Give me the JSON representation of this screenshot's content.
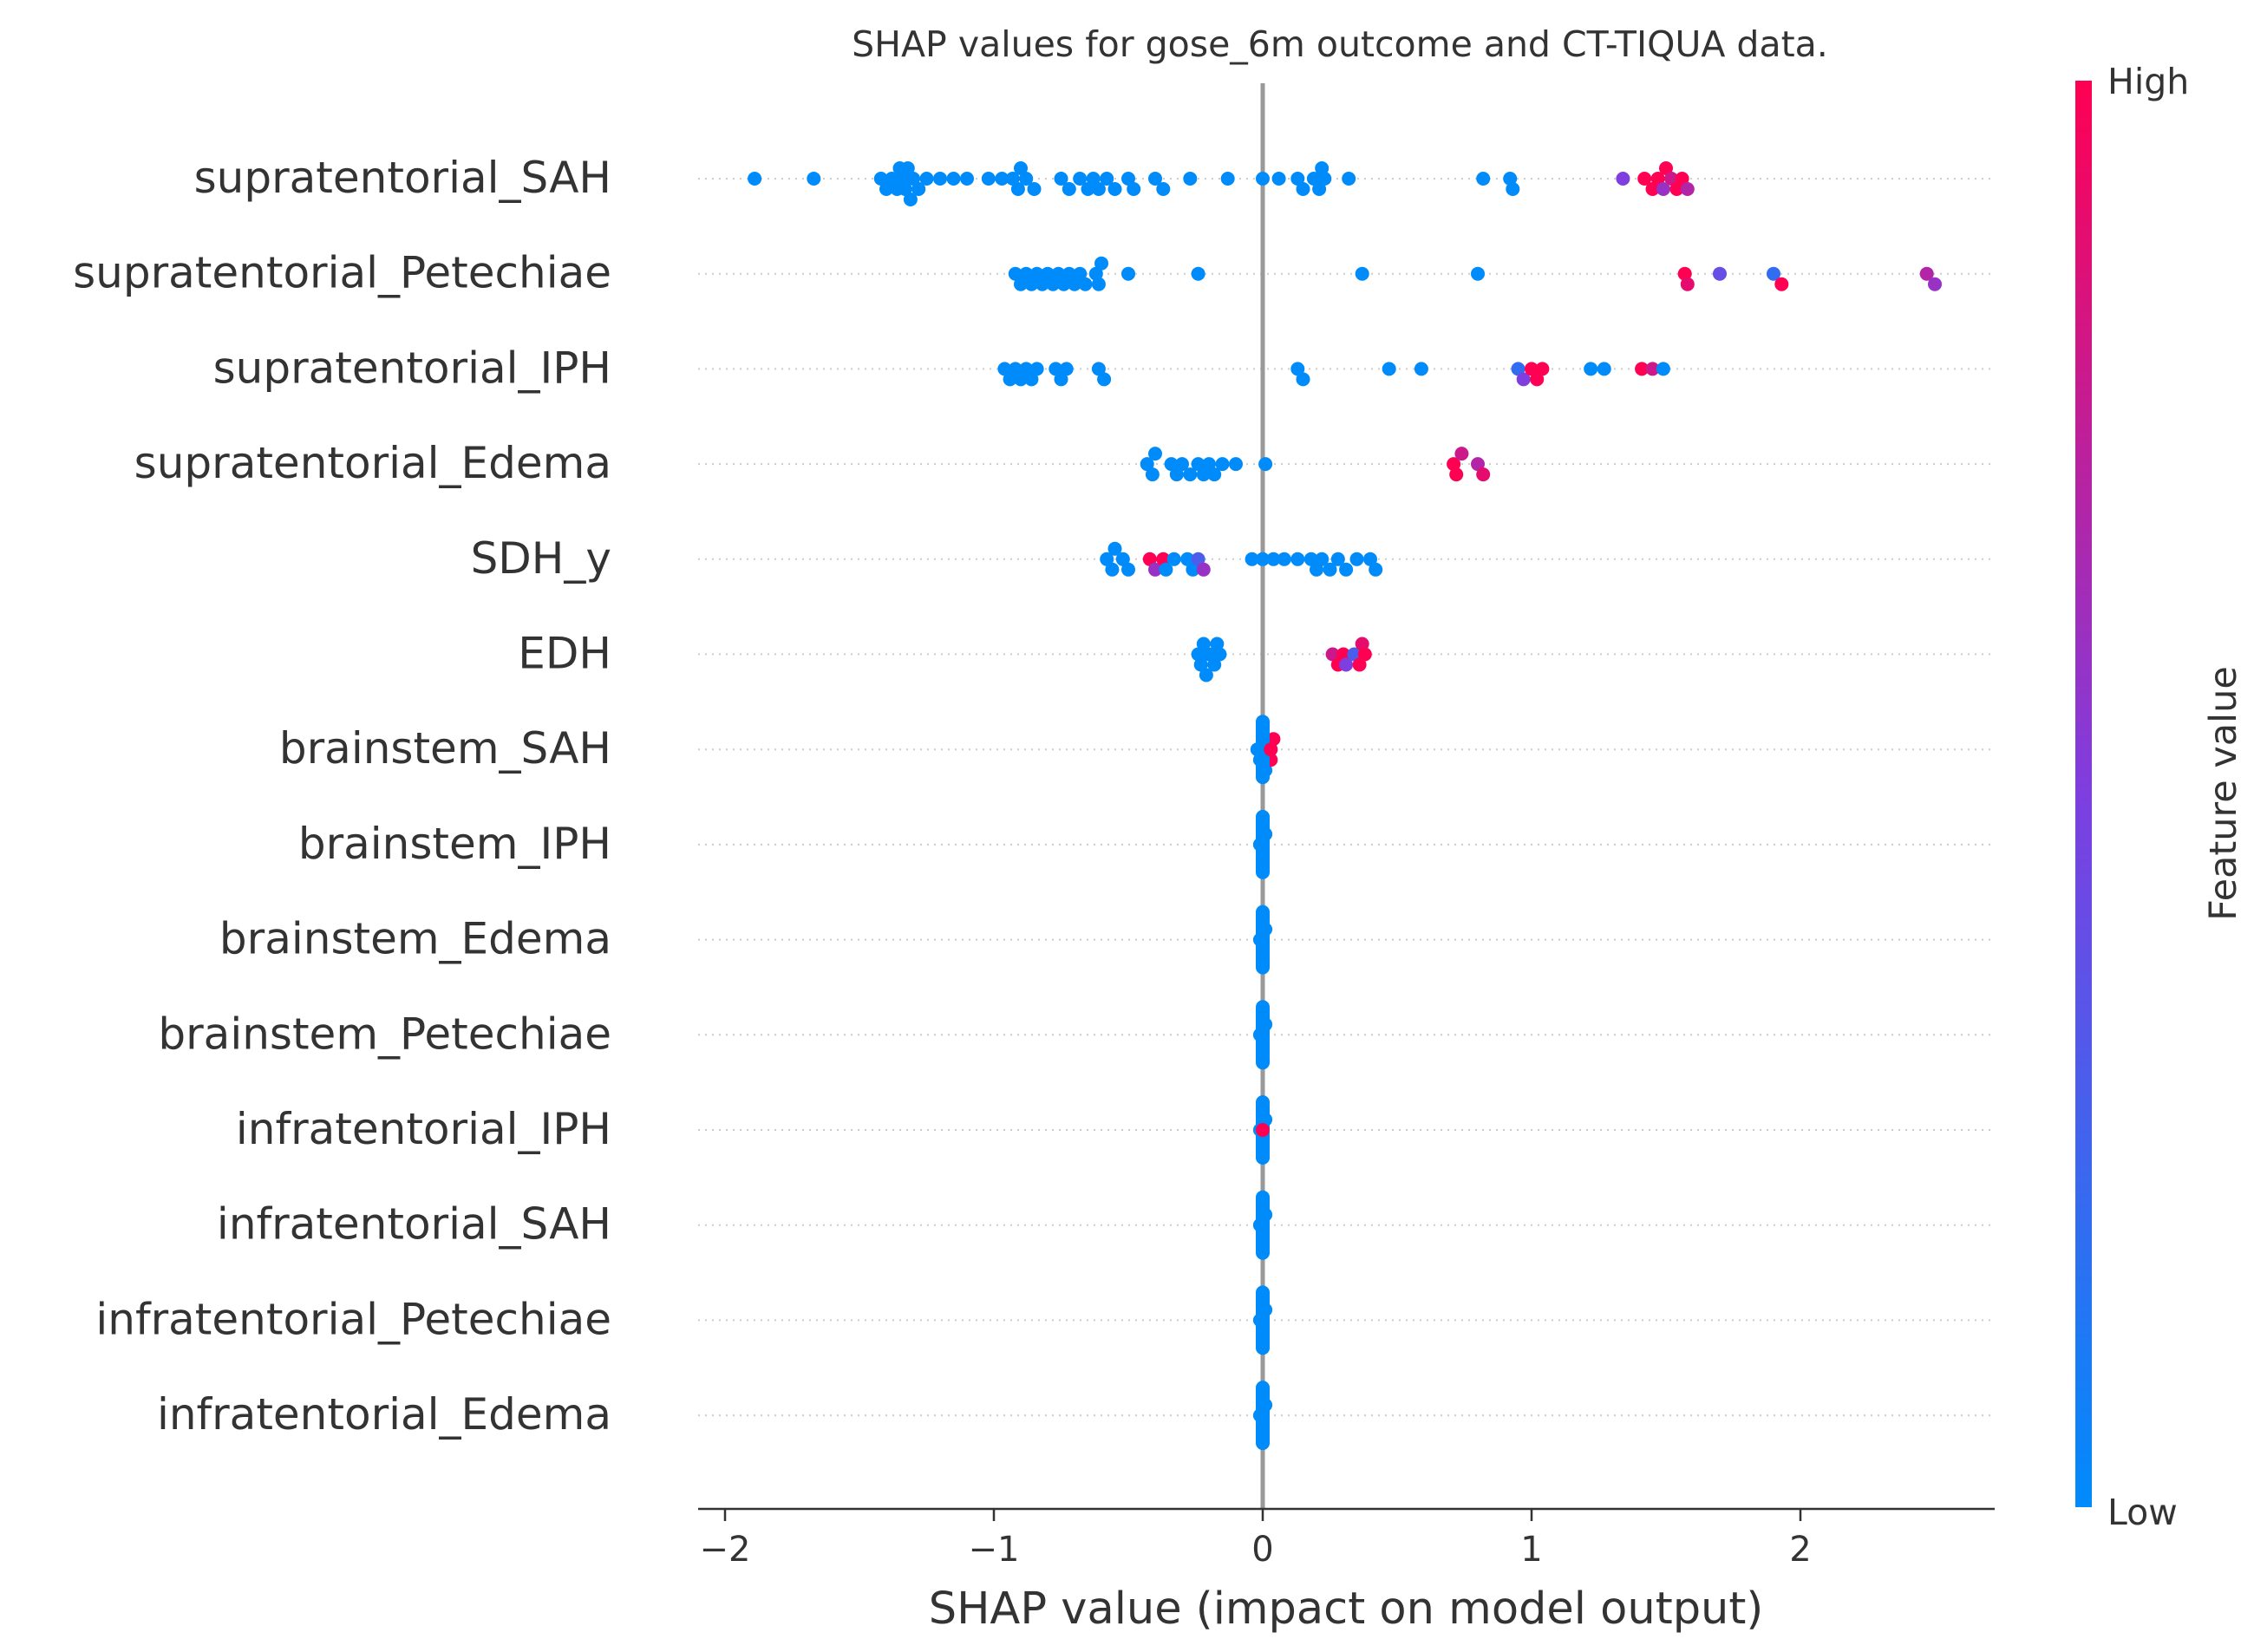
{
  "chart_data": {
    "type": "scatter",
    "title": "SHAP values for gose_6m outcome and CT-TIQUA data.",
    "xlabel": "SHAP value (impact on model output)",
    "xlim": [
      -2.1,
      2.75
    ],
    "xticks": [
      -2,
      -1,
      0,
      1,
      2
    ],
    "xtick_labels": [
      "−2",
      "−1",
      "0",
      "1",
      "2"
    ],
    "grid": "dotted horizontal row lines",
    "zero_line": 0,
    "colorbar": {
      "label": "Feature value",
      "high_label": "High",
      "low_label": "Low",
      "low_color": "#008bfb",
      "high_color": "#ff0052",
      "placement": "right"
    },
    "features": [
      "supratentorial_SAH",
      "supratentorial_Petechiae",
      "supratentorial_IPH",
      "supratentorial_Edema",
      "SDH_y",
      "EDH",
      "brainstem_SAH",
      "brainstem_IPH",
      "brainstem_Edema",
      "brainstem_Petechiae",
      "infratentorial_IPH",
      "infratentorial_SAH",
      "infratentorial_Petechiae",
      "infratentorial_Edema"
    ],
    "series": [
      {
        "feature": "supratentorial_SAH",
        "points": [
          [
            -1.89,
            0
          ],
          [
            -1.67,
            0
          ],
          [
            -1.42,
            0
          ],
          [
            -1.4,
            0
          ],
          [
            -1.38,
            0
          ],
          [
            -1.36,
            0
          ],
          [
            -1.35,
            0
          ],
          [
            -1.34,
            0
          ],
          [
            -1.33,
            0
          ],
          [
            -1.32,
            0
          ],
          [
            -1.31,
            0
          ],
          [
            -1.3,
            0
          ],
          [
            -1.28,
            0
          ],
          [
            -1.25,
            0
          ],
          [
            -1.2,
            0
          ],
          [
            -1.15,
            0
          ],
          [
            -1.1,
            0
          ],
          [
            -1.02,
            0
          ],
          [
            -0.97,
            0
          ],
          [
            -0.93,
            0
          ],
          [
            -0.91,
            0
          ],
          [
            -0.9,
            0
          ],
          [
            -0.88,
            0
          ],
          [
            -0.85,
            0
          ],
          [
            -0.75,
            0
          ],
          [
            -0.72,
            0
          ],
          [
            -0.68,
            0
          ],
          [
            -0.65,
            0
          ],
          [
            -0.63,
            0
          ],
          [
            -0.61,
            0
          ],
          [
            -0.58,
            0
          ],
          [
            -0.55,
            0
          ],
          [
            -0.5,
            0
          ],
          [
            -0.48,
            0
          ],
          [
            -0.4,
            0
          ],
          [
            -0.37,
            0
          ],
          [
            -0.27,
            0
          ],
          [
            -0.13,
            0
          ],
          [
            0.0,
            0
          ],
          [
            0.06,
            0
          ],
          [
            0.13,
            0
          ],
          [
            0.15,
            0
          ],
          [
            0.19,
            0
          ],
          [
            0.21,
            0
          ],
          [
            0.22,
            0
          ],
          [
            0.23,
            0
          ],
          [
            0.32,
            0
          ],
          [
            0.82,
            0
          ],
          [
            0.92,
            0
          ],
          [
            0.93,
            0
          ],
          [
            1.34,
            0.5
          ],
          [
            1.42,
            1
          ],
          [
            1.45,
            1
          ],
          [
            1.47,
            1
          ],
          [
            1.49,
            0.6
          ],
          [
            1.5,
            1
          ],
          [
            1.52,
            0.8
          ],
          [
            1.54,
            1
          ],
          [
            1.56,
            1
          ],
          [
            1.58,
            0.7
          ]
        ]
      },
      {
        "feature": "supratentorial_Petechiae",
        "points": [
          [
            -0.92,
            0
          ],
          [
            -0.9,
            0
          ],
          [
            -0.88,
            0
          ],
          [
            -0.86,
            0
          ],
          [
            -0.84,
            0
          ],
          [
            -0.82,
            0
          ],
          [
            -0.8,
            0
          ],
          [
            -0.78,
            0
          ],
          [
            -0.76,
            0
          ],
          [
            -0.74,
            0
          ],
          [
            -0.72,
            0
          ],
          [
            -0.7,
            0
          ],
          [
            -0.68,
            0
          ],
          [
            -0.66,
            0
          ],
          [
            -0.62,
            0
          ],
          [
            -0.61,
            0
          ],
          [
            -0.6,
            0
          ],
          [
            -0.5,
            0
          ],
          [
            -0.24,
            0
          ],
          [
            0.37,
            0
          ],
          [
            0.8,
            0
          ],
          [
            1.57,
            1
          ],
          [
            1.58,
            0.9
          ],
          [
            1.7,
            0.4
          ],
          [
            1.9,
            0.2
          ],
          [
            1.93,
            1
          ],
          [
            2.47,
            0.7
          ],
          [
            2.5,
            0.6
          ]
        ]
      },
      {
        "feature": "supratentorial_IPH",
        "points": [
          [
            -0.96,
            0
          ],
          [
            -0.94,
            0
          ],
          [
            -0.92,
            0
          ],
          [
            -0.9,
            0
          ],
          [
            -0.88,
            0
          ],
          [
            -0.86,
            0
          ],
          [
            -0.84,
            0
          ],
          [
            -0.77,
            0
          ],
          [
            -0.75,
            0
          ],
          [
            -0.73,
            0
          ],
          [
            -0.61,
            0
          ],
          [
            -0.59,
            0
          ],
          [
            0.13,
            0
          ],
          [
            0.15,
            0
          ],
          [
            0.47,
            0
          ],
          [
            0.59,
            0
          ],
          [
            0.95,
            0.2
          ],
          [
            0.97,
            0.5
          ],
          [
            1.0,
            1
          ],
          [
            1.02,
            1
          ],
          [
            1.04,
            1
          ],
          [
            1.22,
            0
          ],
          [
            1.27,
            0
          ],
          [
            1.41,
            1
          ],
          [
            1.45,
            0.8
          ],
          [
            1.49,
            0
          ]
        ]
      },
      {
        "feature": "supratentorial_Edema",
        "points": [
          [
            -0.43,
            0
          ],
          [
            -0.41,
            0
          ],
          [
            -0.4,
            0
          ],
          [
            -0.34,
            0
          ],
          [
            -0.32,
            0
          ],
          [
            -0.3,
            0
          ],
          [
            -0.27,
            0
          ],
          [
            -0.24,
            0
          ],
          [
            -0.22,
            0
          ],
          [
            -0.2,
            0
          ],
          [
            -0.18,
            0
          ],
          [
            -0.15,
            0
          ],
          [
            -0.1,
            0
          ],
          [
            0.01,
            0
          ],
          [
            0.71,
            1
          ],
          [
            0.72,
            1
          ],
          [
            0.74,
            0.8
          ],
          [
            0.8,
            0.7
          ],
          [
            0.82,
            0.9
          ]
        ]
      },
      {
        "feature": "SDH_y",
        "points": [
          [
            -0.58,
            0
          ],
          [
            -0.56,
            0
          ],
          [
            -0.55,
            0
          ],
          [
            -0.52,
            0
          ],
          [
            -0.5,
            0
          ],
          [
            -0.42,
            1
          ],
          [
            -0.4,
            0.6
          ],
          [
            -0.37,
            1
          ],
          [
            -0.36,
            0
          ],
          [
            -0.33,
            0
          ],
          [
            -0.28,
            0
          ],
          [
            -0.26,
            0
          ],
          [
            -0.24,
            0.3
          ],
          [
            -0.22,
            0.6
          ],
          [
            -0.04,
            0
          ],
          [
            0.0,
            0
          ],
          [
            0.04,
            0
          ],
          [
            0.08,
            0
          ],
          [
            0.13,
            0
          ],
          [
            0.18,
            0
          ],
          [
            0.2,
            0
          ],
          [
            0.22,
            0
          ],
          [
            0.25,
            0
          ],
          [
            0.28,
            0
          ],
          [
            0.31,
            0
          ],
          [
            0.35,
            0
          ],
          [
            0.4,
            0
          ],
          [
            0.42,
            0
          ]
        ]
      },
      {
        "feature": "EDH",
        "points": [
          [
            -0.24,
            0
          ],
          [
            -0.23,
            0
          ],
          [
            -0.22,
            0
          ],
          [
            -0.21,
            0
          ],
          [
            -0.2,
            0
          ],
          [
            -0.18,
            0
          ],
          [
            -0.17,
            0
          ],
          [
            -0.16,
            0
          ],
          [
            0.26,
            0.8
          ],
          [
            0.28,
            1
          ],
          [
            0.3,
            1
          ],
          [
            0.31,
            0.5
          ],
          [
            0.34,
            0.3
          ],
          [
            0.36,
            1
          ],
          [
            0.37,
            0.9
          ],
          [
            0.38,
            1
          ]
        ]
      },
      {
        "feature": "brainstem_SAH",
        "points": [
          [
            -0.02,
            0
          ],
          [
            -0.01,
            0
          ],
          [
            0.0,
            0
          ],
          [
            0.01,
            0
          ],
          [
            0.02,
            0.2
          ],
          [
            0.03,
            1
          ],
          [
            0.04,
            1
          ]
        ]
      },
      {
        "feature": "brainstem_IPH",
        "points": [
          [
            -0.01,
            0
          ],
          [
            0.0,
            0
          ],
          [
            0.01,
            0
          ]
        ]
      },
      {
        "feature": "brainstem_Edema",
        "points": [
          [
            -0.01,
            0
          ],
          [
            0.0,
            0
          ],
          [
            0.01,
            0
          ]
        ]
      },
      {
        "feature": "brainstem_Petechiae",
        "points": [
          [
            -0.01,
            0
          ],
          [
            0.0,
            0
          ],
          [
            0.01,
            0
          ]
        ]
      },
      {
        "feature": "infratentorial_IPH",
        "points": [
          [
            -0.01,
            0
          ],
          [
            0.0,
            1
          ],
          [
            0.01,
            0
          ]
        ]
      },
      {
        "feature": "infratentorial_SAH",
        "points": [
          [
            -0.01,
            0
          ],
          [
            0.0,
            0
          ],
          [
            0.01,
            0
          ]
        ]
      },
      {
        "feature": "infratentorial_Petechiae",
        "points": [
          [
            -0.01,
            0
          ],
          [
            0.0,
            0
          ],
          [
            0.01,
            0
          ]
        ]
      },
      {
        "feature": "infratentorial_Edema",
        "points": [
          [
            -0.01,
            0
          ],
          [
            0.0,
            0
          ],
          [
            0.01,
            0
          ]
        ]
      }
    ]
  }
}
